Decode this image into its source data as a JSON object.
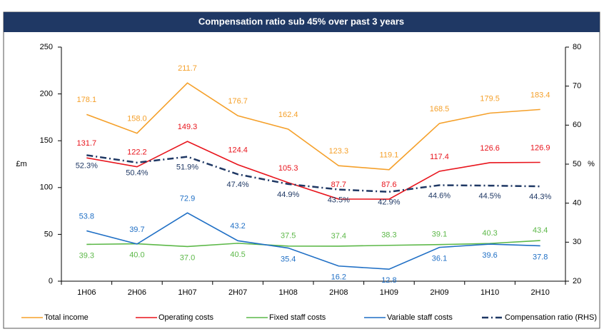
{
  "chart_data": {
    "type": "line",
    "title": "Compensation ratio sub 45% over past 3 years",
    "y_label": "£m",
    "y2_label": "%",
    "categories": [
      "1H06",
      "2H06",
      "1H07",
      "2H07",
      "1H08",
      "2H08",
      "1H09",
      "2H09",
      "1H10",
      "2H10"
    ],
    "ylim": [
      0,
      250
    ],
    "yticks": [
      0,
      50,
      100,
      150,
      200,
      250
    ],
    "y2lim": [
      20,
      80
    ],
    "y2ticks": [
      20,
      30,
      40,
      50,
      60,
      70,
      80
    ],
    "grid": false,
    "legend": "bottom",
    "series": [
      {
        "name": "Total income",
        "color": "#f5a02a",
        "values": [
          178.1,
          158.0,
          211.7,
          176.7,
          162.4,
          123.3,
          119.1,
          168.5,
          179.5,
          183.4
        ],
        "value_labels": [
          "178.1",
          "158.0",
          "211.7",
          "176.7",
          "162.4",
          "123.3",
          "119.1",
          "168.5",
          "179.5",
          "183.4"
        ]
      },
      {
        "name": "Operating costs",
        "color": "#e8141c",
        "values": [
          131.7,
          122.2,
          149.3,
          124.4,
          105.3,
          87.7,
          87.6,
          117.4,
          126.6,
          126.9
        ],
        "value_labels": [
          "131.7",
          "122.2",
          "149.3",
          "124.4",
          "105.3",
          "87.7",
          "87.6",
          "117.4",
          "126.6",
          "126.9"
        ]
      },
      {
        "name": "Fixed staff costs",
        "color": "#5cb848",
        "values": [
          39.3,
          40.0,
          37.0,
          40.5,
          37.5,
          37.4,
          38.3,
          39.1,
          40.3,
          43.4
        ],
        "value_labels": [
          "39.3",
          "40.0",
          "37.0",
          "40.5",
          "37.5",
          "37.4",
          "38.3",
          "39.1",
          "40.3",
          "43.4"
        ]
      },
      {
        "name": "Variable staff costs",
        "color": "#1f6fc5",
        "values": [
          53.8,
          39.7,
          72.9,
          43.2,
          35.4,
          16.2,
          12.8,
          36.1,
          39.6,
          37.8
        ],
        "value_labels": [
          "53.8",
          "39.7",
          "72.9",
          "43.2",
          "35.4",
          "16.2",
          "12.8",
          "36.1",
          "39.6",
          "37.8"
        ]
      },
      {
        "name": "Compensation ratio (RHS)",
        "color": "#1f3864",
        "axis": "y2",
        "dash": "dashdot",
        "values": [
          52.3,
          50.4,
          51.9,
          47.4,
          44.9,
          43.5,
          42.9,
          44.6,
          44.5,
          44.3
        ],
        "value_labels": [
          "52.3%",
          "50.4%",
          "51.9%",
          "47.4%",
          "44.9%",
          "43.5%",
          "42.9%",
          "44.6%",
          "44.5%",
          "44.3%"
        ]
      }
    ]
  }
}
